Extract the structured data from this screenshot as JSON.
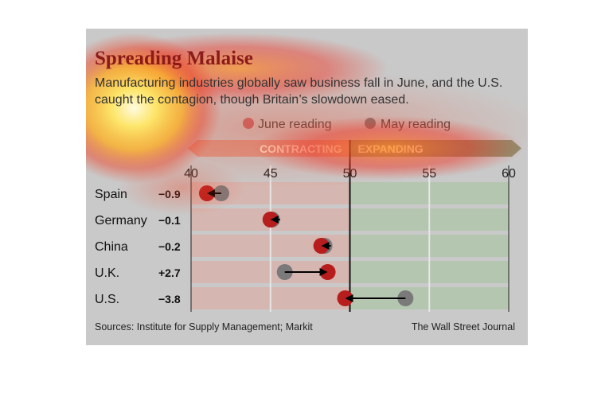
{
  "title": "Spreading Malaise",
  "subtitle": "Manufacturing industries globally saw business fall in June, and the U.S. caught the contagion, though Britain’s slowdown eased.",
  "legend": {
    "june": "June reading",
    "may": "May reading"
  },
  "band": {
    "left": "CONTRACTING",
    "right": "EXPANDING"
  },
  "footer": {
    "source": "Sources: Institute for Supply Management; Markit",
    "credit": "The Wall Street Journal"
  },
  "colors": {
    "june": "#b81d1d",
    "may": "#7a7a7a",
    "contract_bg": "#d6b6b0",
    "expand_bg": "#b4c6b0",
    "title": "#8b1a1a",
    "heat_hot": "#fff9c8",
    "heat_warm": "#ffd23c",
    "heat_red": "#f03020"
  },
  "chart_data": {
    "type": "scatter",
    "title": "Spreading Malaise",
    "xlim": [
      40,
      60
    ],
    "xticks": [
      40,
      45,
      50,
      55,
      60
    ],
    "threshold": 50,
    "categories": [
      "Spain",
      "Germany",
      "China",
      "U.K.",
      "U.S."
    ],
    "changes": [
      "−0.9",
      "−0.1",
      "−0.2",
      "+2.7",
      "−3.8"
    ],
    "series": [
      {
        "name": "June reading",
        "values": [
          41.0,
          45.0,
          48.2,
          48.6,
          49.7
        ]
      },
      {
        "name": "May reading",
        "values": [
          41.9,
          45.1,
          48.4,
          45.9,
          53.5
        ]
      }
    ]
  }
}
